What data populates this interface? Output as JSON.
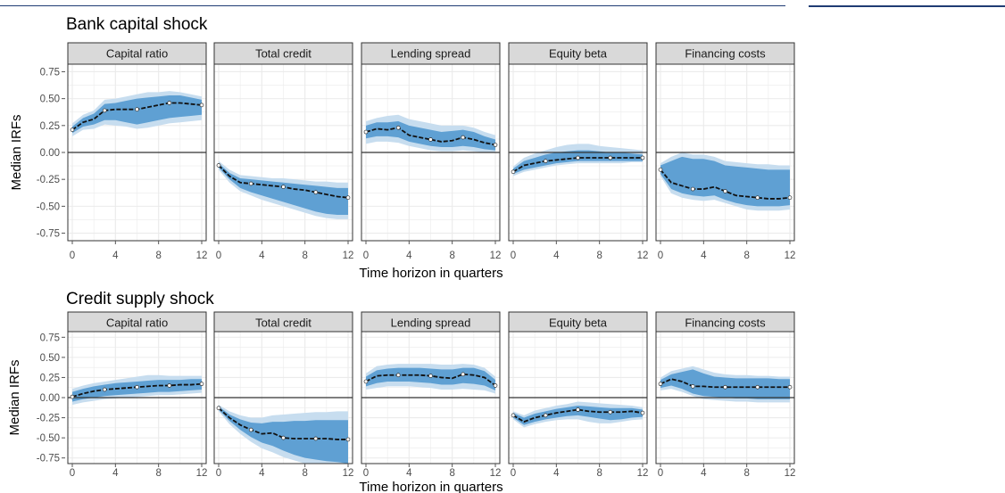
{
  "chart_data": [
    {
      "type": "line",
      "title": "Bank capital shock",
      "xlabel": "Time horizon in quarters",
      "ylabel": "Median IRFs",
      "xlim": [
        0,
        12
      ],
      "ylim": [
        -0.82,
        0.82
      ],
      "x_ticks": [
        0,
        4,
        8,
        12
      ],
      "y_ticks": [
        0.75,
        0.5,
        0.25,
        0.0,
        -0.25,
        -0.5,
        -0.75
      ],
      "y_tick_labels": [
        "0.75",
        "0.50",
        "0.25",
        "0.00",
        "-0.25",
        "-0.50",
        "-0.75"
      ],
      "x": [
        0,
        1,
        2,
        3,
        4,
        5,
        6,
        7,
        8,
        9,
        10,
        11,
        12
      ],
      "panels": [
        {
          "name": "Capital ratio",
          "median": [
            0.21,
            0.28,
            0.31,
            0.39,
            0.4,
            0.4,
            0.4,
            0.42,
            0.44,
            0.46,
            0.46,
            0.45,
            0.44
          ],
          "band68_low": [
            0.18,
            0.24,
            0.26,
            0.3,
            0.3,
            0.28,
            0.26,
            0.28,
            0.3,
            0.32,
            0.33,
            0.34,
            0.35
          ],
          "band68_high": [
            0.24,
            0.32,
            0.36,
            0.45,
            0.46,
            0.48,
            0.5,
            0.51,
            0.52,
            0.53,
            0.53,
            0.51,
            0.49
          ],
          "band90_low": [
            0.15,
            0.21,
            0.22,
            0.26,
            0.25,
            0.24,
            0.22,
            0.23,
            0.25,
            0.27,
            0.28,
            0.29,
            0.3
          ],
          "band90_high": [
            0.27,
            0.35,
            0.39,
            0.49,
            0.5,
            0.52,
            0.54,
            0.56,
            0.56,
            0.57,
            0.56,
            0.54,
            0.52
          ]
        },
        {
          "name": "Total credit",
          "median": [
            -0.12,
            -0.22,
            -0.28,
            -0.29,
            -0.3,
            -0.31,
            -0.32,
            -0.34,
            -0.35,
            -0.37,
            -0.39,
            -0.41,
            -0.42
          ],
          "band68_low": [
            -0.14,
            -0.25,
            -0.33,
            -0.37,
            -0.4,
            -0.43,
            -0.46,
            -0.49,
            -0.52,
            -0.55,
            -0.57,
            -0.58,
            -0.58
          ],
          "band68_high": [
            -0.1,
            -0.19,
            -0.24,
            -0.25,
            -0.26,
            -0.27,
            -0.28,
            -0.29,
            -0.3,
            -0.31,
            -0.32,
            -0.33,
            -0.33
          ],
          "band90_low": [
            -0.16,
            -0.28,
            -0.36,
            -0.4,
            -0.44,
            -0.47,
            -0.5,
            -0.53,
            -0.56,
            -0.59,
            -0.61,
            -0.62,
            -0.62
          ],
          "band90_high": [
            -0.08,
            -0.16,
            -0.21,
            -0.22,
            -0.23,
            -0.24,
            -0.24,
            -0.25,
            -0.26,
            -0.27,
            -0.27,
            -0.28,
            -0.28
          ]
        },
        {
          "name": "Lending spread",
          "median": [
            0.19,
            0.22,
            0.21,
            0.23,
            0.16,
            0.14,
            0.12,
            0.1,
            0.11,
            0.14,
            0.12,
            0.09,
            0.07
          ],
          "band68_low": [
            0.13,
            0.15,
            0.15,
            0.14,
            0.1,
            0.08,
            0.06,
            0.05,
            0.05,
            0.06,
            0.05,
            0.03,
            0.02
          ],
          "band68_high": [
            0.25,
            0.28,
            0.28,
            0.29,
            0.25,
            0.23,
            0.21,
            0.19,
            0.2,
            0.21,
            0.19,
            0.15,
            0.12
          ],
          "band90_low": [
            0.08,
            0.1,
            0.1,
            0.09,
            0.06,
            0.04,
            0.02,
            0.01,
            0.01,
            0.02,
            0.01,
            0.0,
            0.0
          ],
          "band90_high": [
            0.29,
            0.32,
            0.34,
            0.35,
            0.31,
            0.29,
            0.27,
            0.25,
            0.25,
            0.25,
            0.23,
            0.19,
            0.16
          ]
        },
        {
          "name": "Equity beta",
          "median": [
            -0.18,
            -0.12,
            -0.1,
            -0.08,
            -0.07,
            -0.06,
            -0.05,
            -0.05,
            -0.05,
            -0.05,
            -0.05,
            -0.05,
            -0.05
          ],
          "band68_low": [
            -0.2,
            -0.16,
            -0.14,
            -0.12,
            -0.1,
            -0.09,
            -0.08,
            -0.08,
            -0.08,
            -0.08,
            -0.08,
            -0.08,
            -0.08
          ],
          "band68_high": [
            -0.15,
            -0.08,
            -0.05,
            -0.02,
            0.0,
            0.01,
            0.02,
            0.02,
            0.01,
            0.0,
            0.0,
            -0.01,
            -0.02
          ],
          "band90_low": [
            -0.22,
            -0.18,
            -0.16,
            -0.14,
            -0.12,
            -0.11,
            -0.1,
            -0.1,
            -0.1,
            -0.1,
            -0.1,
            -0.09,
            -0.09
          ],
          "band90_high": [
            -0.13,
            -0.05,
            -0.01,
            0.02,
            0.05,
            0.07,
            0.08,
            0.08,
            0.06,
            0.05,
            0.04,
            0.03,
            0.02
          ]
        },
        {
          "name": "Financing costs",
          "median": [
            -0.16,
            -0.28,
            -0.31,
            -0.34,
            -0.34,
            -0.32,
            -0.36,
            -0.4,
            -0.41,
            -0.42,
            -0.43,
            -0.43,
            -0.42
          ],
          "band68_low": [
            -0.2,
            -0.34,
            -0.38,
            -0.4,
            -0.41,
            -0.4,
            -0.44,
            -0.47,
            -0.49,
            -0.5,
            -0.5,
            -0.5,
            -0.49
          ],
          "band68_high": [
            -0.12,
            -0.08,
            -0.04,
            -0.06,
            -0.06,
            -0.08,
            -0.12,
            -0.13,
            -0.14,
            -0.15,
            -0.16,
            -0.16,
            -0.16
          ],
          "band90_low": [
            -0.22,
            -0.38,
            -0.42,
            -0.44,
            -0.45,
            -0.44,
            -0.47,
            -0.5,
            -0.53,
            -0.54,
            -0.54,
            -0.54,
            -0.53
          ],
          "band90_high": [
            -0.1,
            -0.04,
            0.0,
            -0.02,
            -0.02,
            -0.04,
            -0.08,
            -0.09,
            -0.1,
            -0.11,
            -0.11,
            -0.12,
            -0.12
          ]
        }
      ]
    },
    {
      "type": "line",
      "title": "Credit supply shock",
      "xlabel": "Time horizon in quarters",
      "ylabel": "Median IRFs",
      "xlim": [
        0,
        12
      ],
      "ylim": [
        -0.82,
        0.82
      ],
      "x_ticks": [
        0,
        4,
        8,
        12
      ],
      "y_ticks": [
        0.75,
        0.5,
        0.25,
        0.0,
        -0.25,
        -0.5,
        -0.75
      ],
      "y_tick_labels": [
        "0.75",
        "0.50",
        "0.25",
        "0.00",
        "-0.25",
        "-0.50",
        "-0.75"
      ],
      "x": [
        0,
        1,
        2,
        3,
        4,
        5,
        6,
        7,
        8,
        9,
        10,
        11,
        12
      ],
      "panels": [
        {
          "name": "Capital ratio",
          "median": [
            0.01,
            0.05,
            0.08,
            0.1,
            0.11,
            0.12,
            0.13,
            0.14,
            0.15,
            0.15,
            0.16,
            0.16,
            0.17
          ],
          "band68_low": [
            -0.05,
            -0.02,
            0.0,
            0.02,
            0.03,
            0.04,
            0.05,
            0.06,
            0.07,
            0.07,
            0.08,
            0.09,
            0.1
          ],
          "band68_high": [
            0.07,
            0.11,
            0.14,
            0.16,
            0.18,
            0.19,
            0.2,
            0.21,
            0.22,
            0.22,
            0.22,
            0.23,
            0.23
          ],
          "band90_low": [
            -0.09,
            -0.06,
            -0.04,
            -0.02,
            -0.01,
            0.0,
            0.01,
            0.02,
            0.03,
            0.03,
            0.04,
            0.05,
            0.06
          ],
          "band90_high": [
            0.11,
            0.15,
            0.18,
            0.2,
            0.22,
            0.24,
            0.26,
            0.28,
            0.28,
            0.27,
            0.27,
            0.27,
            0.27
          ]
        },
        {
          "name": "Total credit",
          "median": [
            -0.13,
            -0.25,
            -0.34,
            -0.4,
            -0.45,
            -0.44,
            -0.5,
            -0.51,
            -0.51,
            -0.51,
            -0.51,
            -0.52,
            -0.52
          ],
          "band68_low": [
            -0.15,
            -0.29,
            -0.4,
            -0.49,
            -0.56,
            -0.6,
            -0.66,
            -0.71,
            -0.75,
            -0.77,
            -0.79,
            -0.8,
            -0.82
          ],
          "band68_high": [
            -0.11,
            -0.21,
            -0.27,
            -0.31,
            -0.32,
            -0.3,
            -0.3,
            -0.29,
            -0.29,
            -0.28,
            -0.28,
            -0.28,
            -0.28
          ],
          "band90_low": [
            -0.17,
            -0.33,
            -0.45,
            -0.55,
            -0.63,
            -0.68,
            -0.74,
            -0.78,
            -0.82,
            -0.82,
            -0.82,
            -0.82,
            -0.82
          ],
          "band90_high": [
            -0.09,
            -0.17,
            -0.22,
            -0.25,
            -0.25,
            -0.22,
            -0.21,
            -0.2,
            -0.19,
            -0.18,
            -0.18,
            -0.17,
            -0.17
          ]
        },
        {
          "name": "Lending spread",
          "median": [
            0.2,
            0.27,
            0.28,
            0.28,
            0.28,
            0.28,
            0.27,
            0.25,
            0.24,
            0.29,
            0.28,
            0.25,
            0.15
          ],
          "band68_low": [
            0.14,
            0.18,
            0.2,
            0.2,
            0.2,
            0.19,
            0.18,
            0.16,
            0.16,
            0.18,
            0.17,
            0.15,
            0.09
          ],
          "band68_high": [
            0.26,
            0.34,
            0.36,
            0.37,
            0.37,
            0.37,
            0.36,
            0.35,
            0.35,
            0.37,
            0.37,
            0.33,
            0.22
          ],
          "band90_low": [
            0.1,
            0.12,
            0.14,
            0.14,
            0.14,
            0.13,
            0.12,
            0.1,
            0.1,
            0.11,
            0.1,
            0.09,
            0.05
          ],
          "band90_high": [
            0.3,
            0.39,
            0.41,
            0.42,
            0.42,
            0.42,
            0.42,
            0.41,
            0.41,
            0.42,
            0.41,
            0.37,
            0.26
          ]
        },
        {
          "name": "Equity beta",
          "median": [
            -0.22,
            -0.3,
            -0.25,
            -0.22,
            -0.19,
            -0.17,
            -0.15,
            -0.17,
            -0.18,
            -0.18,
            -0.18,
            -0.17,
            -0.19
          ],
          "band68_low": [
            -0.25,
            -0.34,
            -0.3,
            -0.27,
            -0.25,
            -0.23,
            -0.22,
            -0.24,
            -0.26,
            -0.28,
            -0.27,
            -0.25,
            -0.24
          ],
          "band68_high": [
            -0.19,
            -0.25,
            -0.2,
            -0.17,
            -0.14,
            -0.12,
            -0.1,
            -0.11,
            -0.12,
            -0.13,
            -0.13,
            -0.13,
            -0.15
          ],
          "band90_low": [
            -0.27,
            -0.37,
            -0.33,
            -0.3,
            -0.28,
            -0.27,
            -0.27,
            -0.3,
            -0.32,
            -0.32,
            -0.3,
            -0.28,
            -0.27
          ],
          "band90_high": [
            -0.17,
            -0.22,
            -0.16,
            -0.13,
            -0.1,
            -0.08,
            -0.05,
            -0.06,
            -0.07,
            -0.08,
            -0.09,
            -0.1,
            -0.12
          ]
        },
        {
          "name": "Financing costs",
          "median": [
            0.17,
            0.23,
            0.2,
            0.14,
            0.14,
            0.13,
            0.13,
            0.13,
            0.13,
            0.13,
            0.13,
            0.13,
            0.13
          ],
          "band68_low": [
            0.12,
            0.15,
            0.11,
            0.05,
            0.02,
            0.01,
            0.0,
            -0.01,
            -0.01,
            -0.02,
            -0.02,
            -0.02,
            -0.02
          ],
          "band68_high": [
            0.22,
            0.29,
            0.32,
            0.35,
            0.3,
            0.26,
            0.25,
            0.24,
            0.24,
            0.24,
            0.24,
            0.23,
            0.23
          ],
          "band90_low": [
            0.09,
            0.11,
            0.07,
            0.02,
            -0.02,
            -0.03,
            -0.04,
            -0.05,
            -0.05,
            -0.06,
            -0.06,
            -0.06,
            -0.06
          ],
          "band90_high": [
            0.25,
            0.33,
            0.36,
            0.39,
            0.35,
            0.31,
            0.29,
            0.28,
            0.28,
            0.27,
            0.27,
            0.26,
            0.26
          ]
        }
      ]
    }
  ],
  "colors": {
    "band90": "#c7ddef",
    "band68": "#5fa0d3",
    "median_line": "#111111",
    "median_marker_fill": "#ffffff",
    "zero_line": "#333333",
    "strip_fill": "#d9d9d9",
    "grid": "#ebebeb",
    "top_rule": "#1f3b73"
  }
}
